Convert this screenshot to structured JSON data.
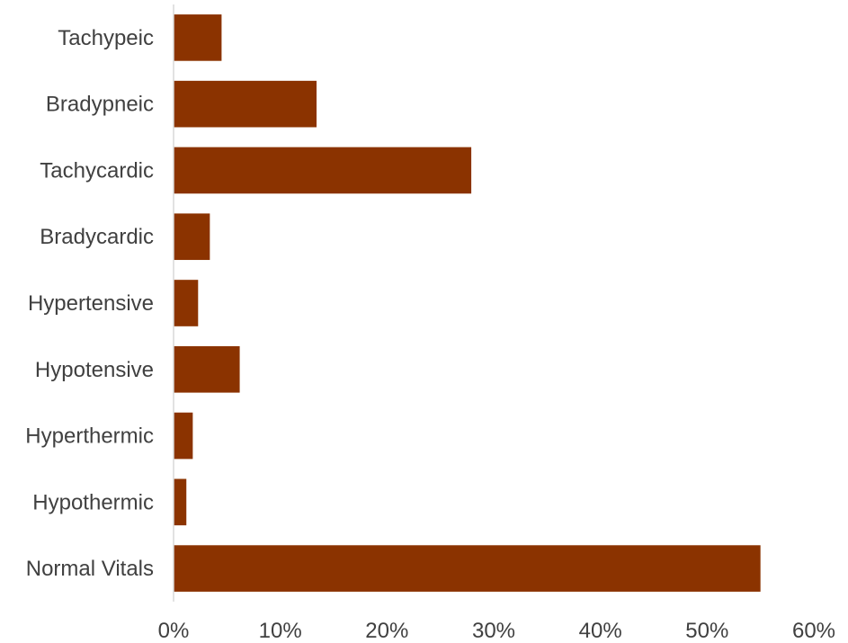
{
  "chart_data": {
    "type": "bar",
    "orientation": "horizontal",
    "categories": [
      "Tachypeic",
      "Bradypneic",
      "Tachycardic",
      "Bradycardic",
      "Hypertensive",
      "Hypotensive",
      "Hyperthermic",
      "Hypothermic",
      "Normal Vitals"
    ],
    "values": [
      0.045,
      0.134,
      0.279,
      0.034,
      0.023,
      0.062,
      0.018,
      0.012,
      0.55
    ],
    "xlim": [
      0,
      0.6
    ],
    "xticks": [
      0,
      0.1,
      0.2,
      0.3,
      0.4,
      0.5,
      0.6
    ],
    "xtick_labels": [
      "0%",
      "10%",
      "20%",
      "30%",
      "40%",
      "50%",
      "60%"
    ],
    "title": "",
    "xlabel": "",
    "ylabel": "",
    "grid": false,
    "legend": "none",
    "colors": {
      "bar": "#8b3300",
      "axis": "#d9d9d9",
      "text": "#404040"
    }
  }
}
